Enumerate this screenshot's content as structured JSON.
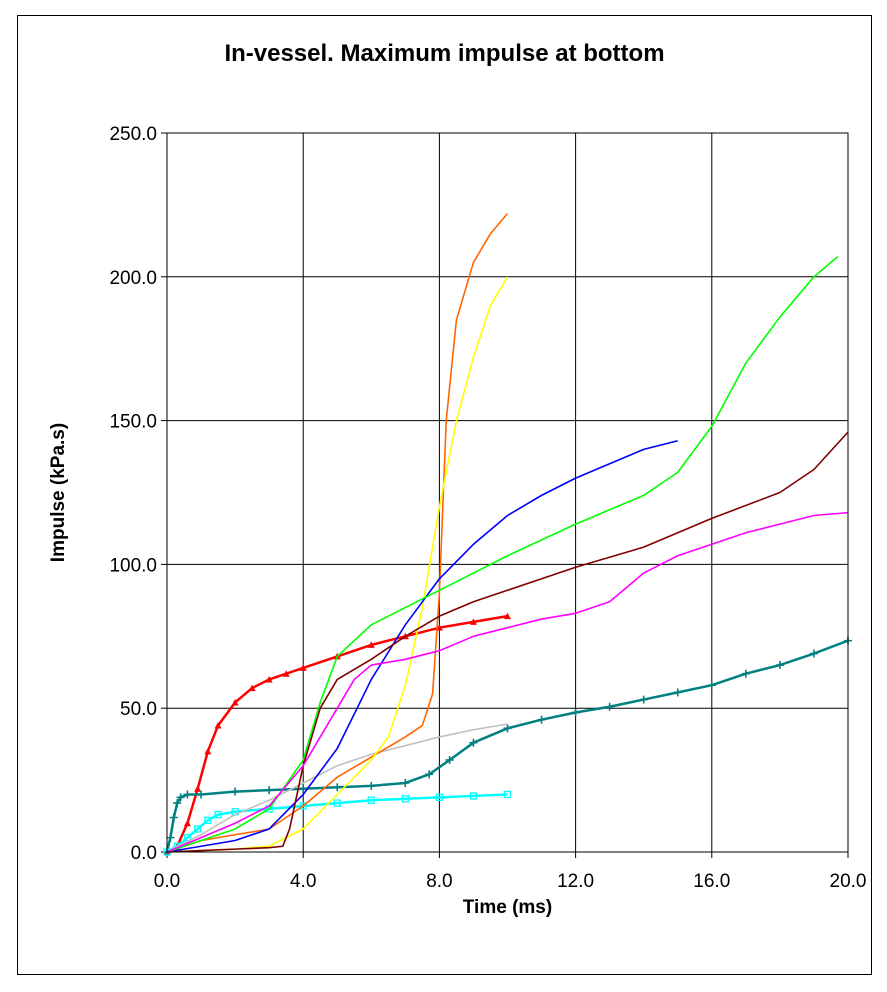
{
  "chart_data": {
    "type": "line",
    "title": "In-vessel. Maximum impulse at bottom",
    "xlabel": "Time (ms)",
    "ylabel": "Impulse (kPa.s)",
    "xlim": [
      0,
      20
    ],
    "ylim": [
      0,
      250
    ],
    "xticks": [
      "0.0",
      "4.0",
      "8.0",
      "12.0",
      "16.0",
      "20.0"
    ],
    "yticks": [
      "0.0",
      "50.0",
      "100.0",
      "150.0",
      "200.0",
      "250.0"
    ],
    "grid": true,
    "legend": "none",
    "series": [
      {
        "color": "#ff0000",
        "marker": "triangle",
        "points": [
          [
            0,
            0
          ],
          [
            0.3,
            2
          ],
          [
            0.6,
            10
          ],
          [
            0.9,
            22
          ],
          [
            1.2,
            35
          ],
          [
            1.5,
            44
          ],
          [
            2,
            52
          ],
          [
            2.5,
            57
          ],
          [
            3,
            60
          ],
          [
            3.5,
            62
          ],
          [
            4,
            64
          ],
          [
            5,
            68
          ],
          [
            6,
            72
          ],
          [
            7,
            75
          ],
          [
            8,
            78
          ],
          [
            9,
            80
          ],
          [
            10,
            82
          ]
        ]
      },
      {
        "color": "#008080",
        "marker": "plus",
        "points": [
          [
            0,
            0
          ],
          [
            0.1,
            5
          ],
          [
            0.2,
            12
          ],
          [
            0.3,
            17
          ],
          [
            0.4,
            19
          ],
          [
            0.6,
            20
          ],
          [
            1,
            20
          ],
          [
            2,
            21
          ],
          [
            3,
            21.5
          ],
          [
            4,
            22
          ],
          [
            5,
            22.5
          ],
          [
            6,
            23
          ],
          [
            7,
            24
          ],
          [
            7.7,
            27
          ],
          [
            8.3,
            32
          ],
          [
            9,
            38
          ],
          [
            10,
            43
          ],
          [
            11,
            46
          ],
          [
            12,
            48.5
          ],
          [
            13,
            50.5
          ],
          [
            14,
            53
          ],
          [
            15,
            55.5
          ],
          [
            16,
            58
          ],
          [
            17,
            62
          ],
          [
            18,
            65
          ],
          [
            19,
            69
          ],
          [
            20,
            73.5
          ]
        ]
      },
      {
        "color": "#00ffff",
        "marker": "square",
        "points": [
          [
            0,
            0
          ],
          [
            0.3,
            2
          ],
          [
            0.6,
            5
          ],
          [
            0.9,
            8
          ],
          [
            1.2,
            11
          ],
          [
            1.5,
            13
          ],
          [
            2,
            14
          ],
          [
            3,
            15
          ],
          [
            4,
            16
          ],
          [
            5,
            17
          ],
          [
            6,
            18
          ],
          [
            7,
            18.5
          ],
          [
            8,
            19
          ],
          [
            9,
            19.5
          ],
          [
            10,
            20
          ]
        ]
      },
      {
        "color": "#c0c0c0",
        "points": [
          [
            0,
            0
          ],
          [
            1,
            6
          ],
          [
            2,
            13
          ],
          [
            3,
            18
          ],
          [
            4,
            24
          ],
          [
            5,
            30
          ],
          [
            6,
            34
          ],
          [
            7,
            37
          ],
          [
            8,
            40
          ],
          [
            9,
            42.5
          ],
          [
            10,
            44.5
          ]
        ]
      },
      {
        "color": "#ff6600",
        "points": [
          [
            0,
            0
          ],
          [
            1,
            4
          ],
          [
            2,
            6
          ],
          [
            3,
            8
          ],
          [
            4,
            16
          ],
          [
            5,
            26
          ],
          [
            6,
            33
          ],
          [
            7,
            40
          ],
          [
            7.5,
            44
          ],
          [
            7.8,
            55
          ],
          [
            8,
            90
          ],
          [
            8.2,
            150
          ],
          [
            8.5,
            185
          ],
          [
            9,
            205
          ],
          [
            9.5,
            215
          ],
          [
            10,
            222
          ]
        ]
      },
      {
        "color": "#ffff00",
        "points": [
          [
            0,
            0
          ],
          [
            1,
            0.5
          ],
          [
            2,
            1
          ],
          [
            3,
            2
          ],
          [
            4,
            8
          ],
          [
            5,
            20
          ],
          [
            6,
            32
          ],
          [
            6.5,
            40
          ],
          [
            7,
            58
          ],
          [
            7.5,
            85
          ],
          [
            8,
            120
          ],
          [
            8.5,
            150
          ],
          [
            9,
            172
          ],
          [
            9.5,
            190
          ],
          [
            10,
            200
          ]
        ]
      },
      {
        "color": "#0000ff",
        "points": [
          [
            0,
            0
          ],
          [
            1,
            2
          ],
          [
            2,
            4
          ],
          [
            3,
            8
          ],
          [
            4,
            20
          ],
          [
            5,
            36
          ],
          [
            6,
            60
          ],
          [
            7,
            79
          ],
          [
            8,
            95
          ],
          [
            9,
            107
          ],
          [
            10,
            117
          ],
          [
            11,
            124
          ],
          [
            12,
            130
          ],
          [
            13,
            135
          ],
          [
            14,
            140
          ],
          [
            15,
            143
          ]
        ]
      },
      {
        "color": "#00ff00",
        "points": [
          [
            0,
            0
          ],
          [
            1,
            4
          ],
          [
            2,
            8
          ],
          [
            3,
            15
          ],
          [
            4,
            32
          ],
          [
            4.5,
            52
          ],
          [
            5,
            68
          ],
          [
            6,
            79
          ],
          [
            7,
            85
          ],
          [
            8,
            91
          ],
          [
            9,
            97
          ],
          [
            10,
            103
          ],
          [
            12,
            114
          ],
          [
            14,
            124
          ],
          [
            15,
            132
          ],
          [
            16,
            148
          ],
          [
            17,
            170
          ],
          [
            18,
            186
          ],
          [
            19,
            200
          ],
          [
            19.7,
            207
          ]
        ]
      },
      {
        "color": "#800000",
        "points": [
          [
            0,
            0
          ],
          [
            1,
            0.5
          ],
          [
            2,
            1
          ],
          [
            3,
            1.5
          ],
          [
            3.4,
            2
          ],
          [
            3.6,
            8
          ],
          [
            4,
            30
          ],
          [
            4.5,
            50
          ],
          [
            5,
            60
          ],
          [
            6,
            67
          ],
          [
            7,
            75
          ],
          [
            8,
            82
          ],
          [
            9,
            87
          ],
          [
            10,
            91
          ],
          [
            12,
            99
          ],
          [
            14,
            106
          ],
          [
            16,
            116
          ],
          [
            18,
            125
          ],
          [
            19,
            133
          ],
          [
            20,
            146
          ]
        ]
      },
      {
        "color": "#ff00ff",
        "points": [
          [
            0,
            0
          ],
          [
            1,
            5
          ],
          [
            2,
            10
          ],
          [
            3,
            16
          ],
          [
            4,
            30
          ],
          [
            5,
            50
          ],
          [
            5.5,
            60
          ],
          [
            6,
            65
          ],
          [
            7,
            67
          ],
          [
            8,
            70
          ],
          [
            9,
            75
          ],
          [
            10,
            78
          ],
          [
            11,
            81
          ],
          [
            12,
            83
          ],
          [
            13,
            87
          ],
          [
            14,
            97
          ],
          [
            15,
            103
          ],
          [
            16,
            107
          ],
          [
            17,
            111
          ],
          [
            18,
            114
          ],
          [
            19,
            117
          ],
          [
            20,
            118
          ]
        ]
      }
    ]
  }
}
